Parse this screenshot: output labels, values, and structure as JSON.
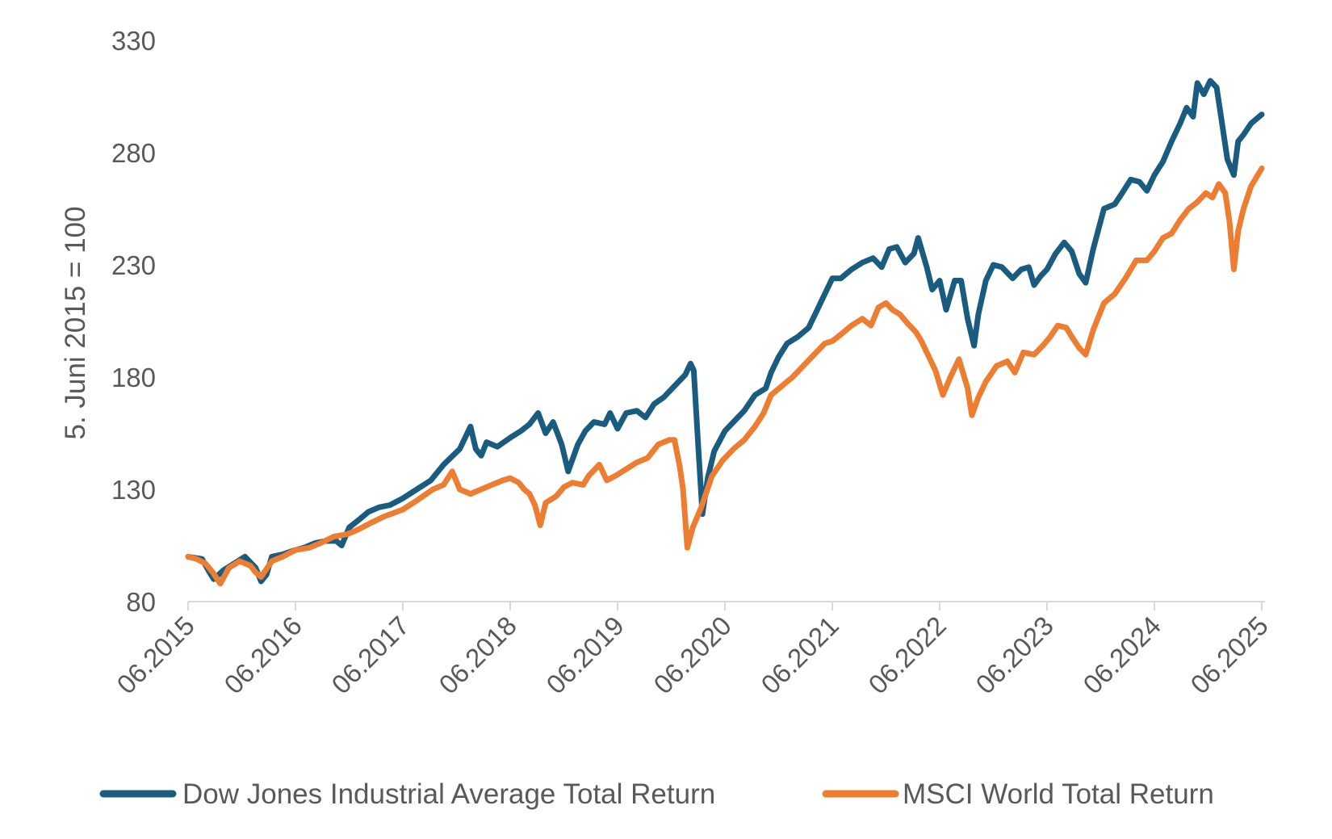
{
  "chart_data": {
    "type": "line",
    "title": "",
    "xlabel": "",
    "ylabel": "5. Juni 2015 = 100",
    "ylim": [
      80,
      330
    ],
    "yticks": [
      80,
      130,
      180,
      230,
      280,
      330
    ],
    "xlim": [
      2015.42,
      2025.42
    ],
    "xticks": [
      {
        "x": 2015.42,
        "label": "06.2015"
      },
      {
        "x": 2016.42,
        "label": "06.2016"
      },
      {
        "x": 2017.42,
        "label": "06.2017"
      },
      {
        "x": 2018.42,
        "label": "06.2018"
      },
      {
        "x": 2019.42,
        "label": "06.2019"
      },
      {
        "x": 2020.42,
        "label": "06.2020"
      },
      {
        "x": 2021.42,
        "label": "06.2021"
      },
      {
        "x": 2022.42,
        "label": "06.2022"
      },
      {
        "x": 2023.42,
        "label": "06.2023"
      },
      {
        "x": 2024.42,
        "label": "06.2024"
      },
      {
        "x": 2025.42,
        "label": "06.2025"
      }
    ],
    "grid": false,
    "legend_position": "bottom",
    "series": [
      {
        "name": "Dow Jones Industrial Average Total Return",
        "color": "#1a5c80",
        "points": [
          [
            2015.42,
            100
          ],
          [
            2015.55,
            99
          ],
          [
            2015.62,
            93
          ],
          [
            2015.66,
            90
          ],
          [
            2015.75,
            94
          ],
          [
            2015.85,
            97
          ],
          [
            2015.95,
            100
          ],
          [
            2016.05,
            95
          ],
          [
            2016.1,
            89
          ],
          [
            2016.15,
            92
          ],
          [
            2016.2,
            100
          ],
          [
            2016.3,
            101
          ],
          [
            2016.42,
            103
          ],
          [
            2016.5,
            104
          ],
          [
            2016.6,
            106
          ],
          [
            2016.7,
            107
          ],
          [
            2016.8,
            107
          ],
          [
            2016.85,
            105
          ],
          [
            2016.92,
            113
          ],
          [
            2017.0,
            116
          ],
          [
            2017.1,
            120
          ],
          [
            2017.2,
            122
          ],
          [
            2017.3,
            123
          ],
          [
            2017.42,
            126
          ],
          [
            2017.55,
            130
          ],
          [
            2017.68,
            134
          ],
          [
            2017.8,
            141
          ],
          [
            2017.95,
            148
          ],
          [
            2018.05,
            158
          ],
          [
            2018.1,
            148
          ],
          [
            2018.15,
            145
          ],
          [
            2018.2,
            151
          ],
          [
            2018.3,
            149
          ],
          [
            2018.42,
            153
          ],
          [
            2018.52,
            156
          ],
          [
            2018.6,
            159
          ],
          [
            2018.68,
            164
          ],
          [
            2018.75,
            155
          ],
          [
            2018.82,
            160
          ],
          [
            2018.9,
            150
          ],
          [
            2018.96,
            138
          ],
          [
            2019.05,
            150
          ],
          [
            2019.12,
            156
          ],
          [
            2019.2,
            160
          ],
          [
            2019.3,
            159
          ],
          [
            2019.35,
            164
          ],
          [
            2019.42,
            157
          ],
          [
            2019.5,
            164
          ],
          [
            2019.6,
            165
          ],
          [
            2019.68,
            162
          ],
          [
            2019.76,
            168
          ],
          [
            2019.85,
            171
          ],
          [
            2019.95,
            176
          ],
          [
            2020.05,
            181
          ],
          [
            2020.1,
            186
          ],
          [
            2020.13,
            183
          ],
          [
            2020.17,
            150
          ],
          [
            2020.21,
            119
          ],
          [
            2020.26,
            135
          ],
          [
            2020.32,
            147
          ],
          [
            2020.42,
            156
          ],
          [
            2020.5,
            160
          ],
          [
            2020.6,
            165
          ],
          [
            2020.7,
            172
          ],
          [
            2020.8,
            175
          ],
          [
            2020.85,
            182
          ],
          [
            2020.92,
            189
          ],
          [
            2021.0,
            195
          ],
          [
            2021.1,
            198
          ],
          [
            2021.2,
            202
          ],
          [
            2021.28,
            210
          ],
          [
            2021.36,
            218
          ],
          [
            2021.42,
            224
          ],
          [
            2021.5,
            224
          ],
          [
            2021.6,
            228
          ],
          [
            2021.7,
            231
          ],
          [
            2021.8,
            233
          ],
          [
            2021.88,
            229
          ],
          [
            2021.95,
            237
          ],
          [
            2022.02,
            238
          ],
          [
            2022.1,
            231
          ],
          [
            2022.18,
            235
          ],
          [
            2022.22,
            242
          ],
          [
            2022.3,
            229
          ],
          [
            2022.35,
            219
          ],
          [
            2022.42,
            223
          ],
          [
            2022.48,
            210
          ],
          [
            2022.56,
            223
          ],
          [
            2022.62,
            223
          ],
          [
            2022.68,
            206
          ],
          [
            2022.74,
            194
          ],
          [
            2022.78,
            208
          ],
          [
            2022.85,
            223
          ],
          [
            2022.92,
            230
          ],
          [
            2023.0,
            229
          ],
          [
            2023.1,
            224
          ],
          [
            2023.18,
            228
          ],
          [
            2023.25,
            229
          ],
          [
            2023.3,
            221
          ],
          [
            2023.36,
            225
          ],
          [
            2023.42,
            228
          ],
          [
            2023.5,
            235
          ],
          [
            2023.58,
            240
          ],
          [
            2023.65,
            236
          ],
          [
            2023.72,
            226
          ],
          [
            2023.78,
            222
          ],
          [
            2023.85,
            237
          ],
          [
            2023.95,
            255
          ],
          [
            2024.05,
            257
          ],
          [
            2024.12,
            262
          ],
          [
            2024.2,
            268
          ],
          [
            2024.28,
            267
          ],
          [
            2024.35,
            263
          ],
          [
            2024.42,
            270
          ],
          [
            2024.5,
            276
          ],
          [
            2024.58,
            285
          ],
          [
            2024.66,
            293
          ],
          [
            2024.72,
            300
          ],
          [
            2024.78,
            296
          ],
          [
            2024.82,
            311
          ],
          [
            2024.88,
            306
          ],
          [
            2024.94,
            312
          ],
          [
            2025.0,
            309
          ],
          [
            2025.05,
            293
          ],
          [
            2025.1,
            277
          ],
          [
            2025.16,
            270
          ],
          [
            2025.2,
            285
          ],
          [
            2025.25,
            288
          ],
          [
            2025.32,
            293
          ],
          [
            2025.42,
            297
          ]
        ]
      },
      {
        "name": "MSCI World Total Return",
        "color": "#ed7d31",
        "points": [
          [
            2015.42,
            100
          ],
          [
            2015.5,
            99
          ],
          [
            2015.58,
            97
          ],
          [
            2015.65,
            93
          ],
          [
            2015.72,
            88
          ],
          [
            2015.8,
            95
          ],
          [
            2015.9,
            98
          ],
          [
            2016.0,
            96
          ],
          [
            2016.05,
            93
          ],
          [
            2016.1,
            91
          ],
          [
            2016.2,
            98
          ],
          [
            2016.3,
            100
          ],
          [
            2016.42,
            103
          ],
          [
            2016.55,
            104
          ],
          [
            2016.65,
            106
          ],
          [
            2016.78,
            109
          ],
          [
            2016.9,
            110
          ],
          [
            2017.0,
            112
          ],
          [
            2017.12,
            115
          ],
          [
            2017.25,
            118
          ],
          [
            2017.42,
            121
          ],
          [
            2017.55,
            125
          ],
          [
            2017.7,
            130
          ],
          [
            2017.8,
            132
          ],
          [
            2017.88,
            138
          ],
          [
            2017.95,
            130
          ],
          [
            2018.05,
            128
          ],
          [
            2018.15,
            130
          ],
          [
            2018.25,
            132
          ],
          [
            2018.35,
            134
          ],
          [
            2018.42,
            135
          ],
          [
            2018.5,
            133
          ],
          [
            2018.55,
            130
          ],
          [
            2018.6,
            128
          ],
          [
            2018.65,
            123
          ],
          [
            2018.7,
            114
          ],
          [
            2018.75,
            124
          ],
          [
            2018.85,
            127
          ],
          [
            2018.92,
            131
          ],
          [
            2019.0,
            133
          ],
          [
            2019.1,
            132
          ],
          [
            2019.15,
            136
          ],
          [
            2019.25,
            141
          ],
          [
            2019.32,
            134
          ],
          [
            2019.4,
            136
          ],
          [
            2019.5,
            139
          ],
          [
            2019.6,
            142
          ],
          [
            2019.7,
            144
          ],
          [
            2019.8,
            150
          ],
          [
            2019.9,
            152
          ],
          [
            2019.95,
            152
          ],
          [
            2020.0,
            140
          ],
          [
            2020.03,
            130
          ],
          [
            2020.07,
            104
          ],
          [
            2020.12,
            113
          ],
          [
            2020.2,
            122
          ],
          [
            2020.3,
            136
          ],
          [
            2020.4,
            143
          ],
          [
            2020.5,
            148
          ],
          [
            2020.6,
            152
          ],
          [
            2020.7,
            158
          ],
          [
            2020.78,
            164
          ],
          [
            2020.85,
            172
          ],
          [
            2020.95,
            176
          ],
          [
            2021.05,
            180
          ],
          [
            2021.15,
            185
          ],
          [
            2021.25,
            190
          ],
          [
            2021.35,
            195
          ],
          [
            2021.42,
            196
          ],
          [
            2021.5,
            199
          ],
          [
            2021.6,
            203
          ],
          [
            2021.7,
            206
          ],
          [
            2021.78,
            203
          ],
          [
            2021.85,
            211
          ],
          [
            2021.92,
            213
          ],
          [
            2021.98,
            210
          ],
          [
            2022.05,
            208
          ],
          [
            2022.12,
            204
          ],
          [
            2022.2,
            200
          ],
          [
            2022.25,
            196
          ],
          [
            2022.32,
            189
          ],
          [
            2022.38,
            183
          ],
          [
            2022.45,
            172
          ],
          [
            2022.52,
            180
          ],
          [
            2022.6,
            188
          ],
          [
            2022.68,
            175
          ],
          [
            2022.72,
            163
          ],
          [
            2022.78,
            171
          ],
          [
            2022.85,
            178
          ],
          [
            2022.95,
            185
          ],
          [
            2023.05,
            187
          ],
          [
            2023.12,
            182
          ],
          [
            2023.2,
            191
          ],
          [
            2023.3,
            190
          ],
          [
            2023.38,
            194
          ],
          [
            2023.45,
            198
          ],
          [
            2023.52,
            203
          ],
          [
            2023.6,
            202
          ],
          [
            2023.65,
            198
          ],
          [
            2023.72,
            193
          ],
          [
            2023.78,
            190
          ],
          [
            2023.85,
            201
          ],
          [
            2023.95,
            213
          ],
          [
            2024.05,
            217
          ],
          [
            2024.15,
            224
          ],
          [
            2024.25,
            232
          ],
          [
            2024.35,
            232
          ],
          [
            2024.42,
            236
          ],
          [
            2024.5,
            242
          ],
          [
            2024.58,
            244
          ],
          [
            2024.66,
            250
          ],
          [
            2024.74,
            255
          ],
          [
            2024.82,
            258
          ],
          [
            2024.9,
            262
          ],
          [
            2024.96,
            260
          ],
          [
            2025.02,
            266
          ],
          [
            2025.08,
            262
          ],
          [
            2025.12,
            249
          ],
          [
            2025.16,
            228
          ],
          [
            2025.2,
            245
          ],
          [
            2025.25,
            255
          ],
          [
            2025.32,
            265
          ],
          [
            2025.42,
            273
          ]
        ]
      }
    ]
  }
}
